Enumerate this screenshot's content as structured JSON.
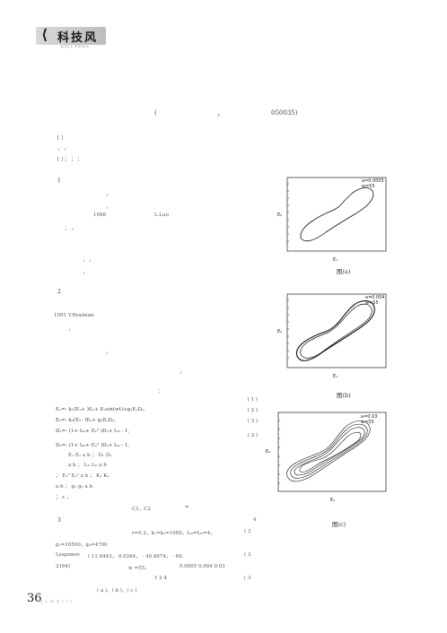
{
  "header": {
    "logo_chars": "科技风",
    "logo_sub": "KEJI FENG"
  },
  "affiliation": {
    "open_paren": "(",
    "comma": "，",
    "code": "050035)"
  },
  "page_number": "36",
  "section_markers": {
    "s1": "1",
    "s2": "2",
    "s3": "3"
  },
  "text": {
    "year_1998": "1998",
    "l_luo": "L.Luo",
    "y_1991": "1991",
    "braiman": "Y.Braiman",
    "c1c2": "C1，C2",
    "eq_sign": "=",
    "params": "r=0.2，k₁=k₂=1000，I₁₀=I₂₀=4，",
    "g_vals": "g₁=10500，g₂=4700",
    "lyap": "Lyapunov",
    "lyap_vals": "( 11.0443， 0.0264， - 49.4674， - 69.",
    "lyap_cont": "2164)",
    "w_val": "w =55，",
    "w_seq": "0.0005  0.004  0.03",
    "nums_1_2_4": "1      2      4",
    "fig_refs": "( a )、( b )、( c )",
    "four": "4"
  },
  "equations": [
    {
      "body": "E₁=- k₁(E₁+    )E₁+    E₂sin(wt)+g₁E₁D₁,",
      "num": "( 1 )"
    },
    {
      "body": "E₂=- k₂(E₂-    )E₂+ g₂E₂D₂,",
      "num": "( 2 )"
    },
    {
      "body": "D₁=- (1+ I₁₀+  E₁²  )D₁+ I₁₀ - 1,",
      "num": "( 3 )"
    },
    {
      "body": "D₂=- (1+ I₂₀+  E₂²  )D₂+ I₂₀ - 1,",
      "num": "( 3 )"
    }
  ],
  "var_line": {
    "a": "E₁   E₂            a         b                    ；  D₁   D₂",
    "b": "a        b                 ；  I₁₀   I₂₀              a         b",
    "c": "；  E₁²        E₂²                  a         b                    ；  K₁   K₂",
    "d": "a        b                    ；  g₁   g₂           a         b",
    "e": "；  ε                                                                                     ，"
  },
  "refnum_3": "( 3",
  "bottom_refs": {
    "r1": "( 3",
    "r2": "( 3"
  },
  "figures": [
    {
      "label": "图(a)",
      "legend": [
        "a=0.0005",
        "w=55"
      ]
    },
    {
      "label": "图(b)",
      "legend": [
        "a=0.004",
        "w=55"
      ]
    },
    {
      "label": "图(c)",
      "legend": [
        "a=0.03",
        "w=55"
      ]
    }
  ],
  "axis": {
    "x": "E₁",
    "y": "E₂"
  },
  "footer": "J I M E  I  /  )"
}
